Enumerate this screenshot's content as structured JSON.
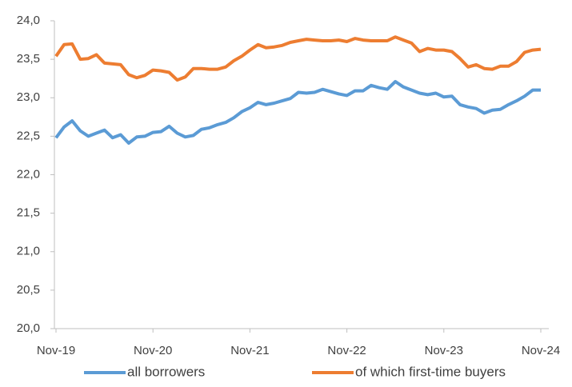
{
  "chart_data": {
    "type": "line",
    "categories": [
      "Nov-19",
      null,
      null,
      null,
      null,
      null,
      null,
      null,
      null,
      null,
      null,
      null,
      "Nov-20",
      null,
      null,
      null,
      null,
      null,
      null,
      null,
      null,
      null,
      null,
      null,
      "Nov-21",
      null,
      null,
      null,
      null,
      null,
      null,
      null,
      null,
      null,
      null,
      null,
      "Nov-22",
      null,
      null,
      null,
      null,
      null,
      null,
      null,
      null,
      null,
      null,
      null,
      "Nov-23",
      null,
      null,
      null,
      null,
      null,
      null,
      null,
      null,
      null,
      null,
      null,
      "Nov-24"
    ],
    "series": [
      {
        "name": "all borrowers",
        "color": "#5b9bd5",
        "values": [
          22.48,
          22.62,
          22.7,
          22.57,
          22.5,
          22.54,
          22.58,
          22.48,
          22.52,
          22.41,
          22.49,
          22.5,
          22.55,
          22.56,
          22.63,
          22.54,
          22.49,
          22.51,
          22.59,
          22.61,
          22.65,
          22.68,
          22.74,
          22.82,
          22.87,
          22.94,
          22.91,
          22.93,
          22.96,
          22.99,
          23.07,
          23.06,
          23.07,
          23.11,
          23.08,
          23.05,
          23.03,
          23.09,
          23.09,
          23.16,
          23.13,
          23.11,
          23.21,
          23.14,
          23.1,
          23.06,
          23.04,
          23.06,
          23.01,
          23.02,
          22.91,
          22.88,
          22.86,
          22.8,
          22.84,
          22.85,
          22.91,
          22.96,
          23.02,
          23.1,
          23.1
        ]
      },
      {
        "name": "of which first-time buyers",
        "color": "#ed7d31",
        "values": [
          23.54,
          23.69,
          23.7,
          23.5,
          23.51,
          23.56,
          23.45,
          23.44,
          23.43,
          23.3,
          23.26,
          23.29,
          23.36,
          23.35,
          23.33,
          23.23,
          23.27,
          23.38,
          23.38,
          23.37,
          23.37,
          23.4,
          23.48,
          23.54,
          23.62,
          23.69,
          23.65,
          23.66,
          23.68,
          23.72,
          23.74,
          23.76,
          23.75,
          23.74,
          23.74,
          23.75,
          23.73,
          23.77,
          23.75,
          23.74,
          23.74,
          23.74,
          23.79,
          23.75,
          23.71,
          23.6,
          23.64,
          23.62,
          23.62,
          23.6,
          23.51,
          23.4,
          23.43,
          23.38,
          23.37,
          23.41,
          23.41,
          23.47,
          23.59,
          23.62,
          23.63
        ]
      }
    ],
    "ylim": [
      20,
      24
    ],
    "yticks": [
      {
        "value": 20,
        "label": "20,0"
      },
      {
        "value": 20.5,
        "label": "20,5"
      },
      {
        "value": 21,
        "label": "21,0"
      },
      {
        "value": 21.5,
        "label": "21,5"
      },
      {
        "value": 22,
        "label": "22,0"
      },
      {
        "value": 22.5,
        "label": "22,5"
      },
      {
        "value": 23,
        "label": "23,0"
      },
      {
        "value": 23.5,
        "label": "23,5"
      },
      {
        "value": 24,
        "label": "24,0"
      }
    ],
    "grid": false,
    "legend": "bottom"
  }
}
